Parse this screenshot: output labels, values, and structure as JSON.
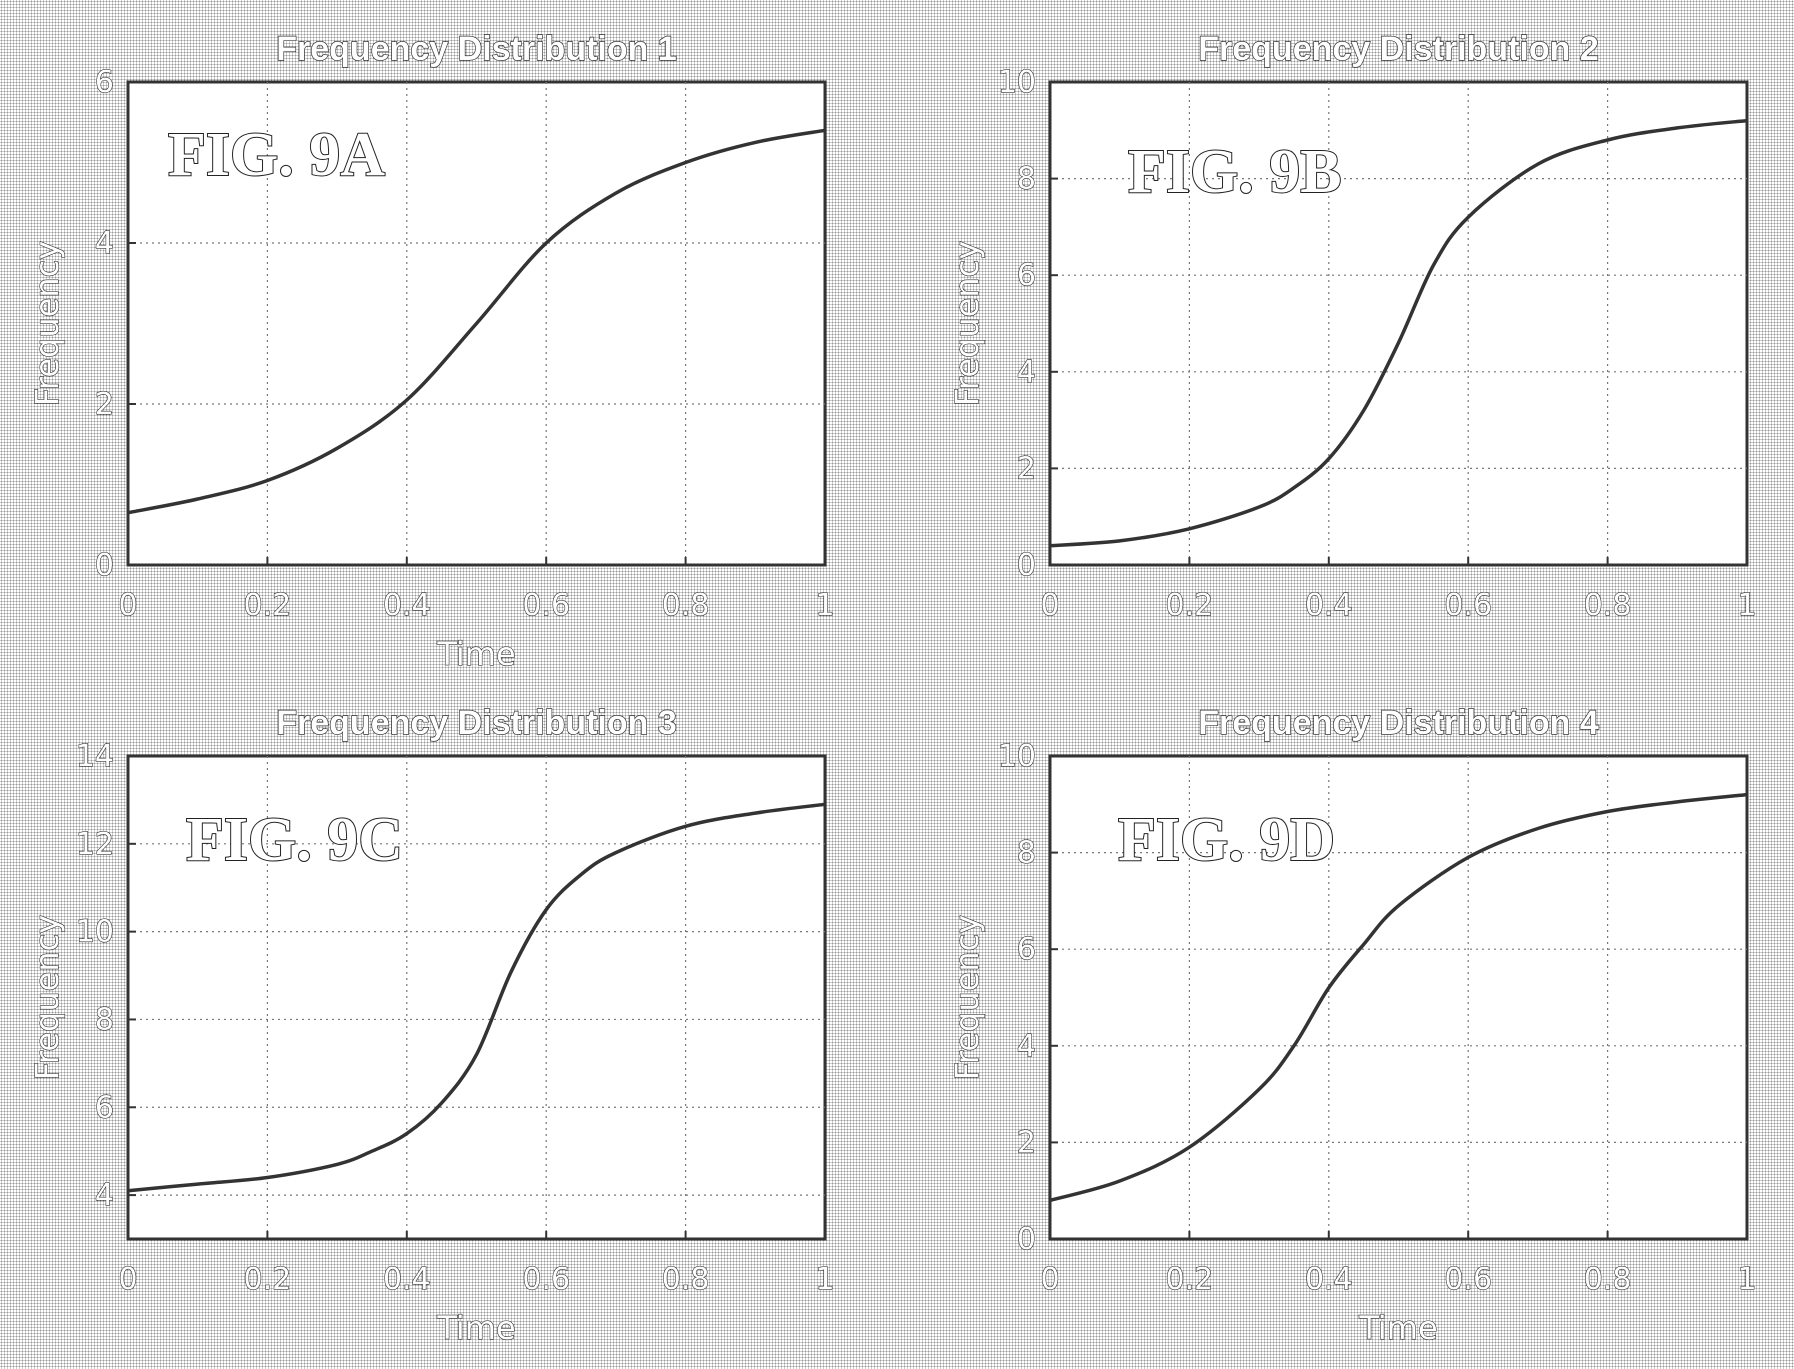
{
  "chart_data": [
    {
      "type": "line",
      "title": "Frequency Distribution 1",
      "annotation": "FIG. 9A",
      "xlabel": "Time",
      "ylabel": "Frequency",
      "xlim": [
        0,
        1
      ],
      "ylim": [
        0,
        6
      ],
      "xticks": [
        "0",
        "0.2",
        "0.4",
        "0.6",
        "0.8",
        "1"
      ],
      "yticks": [
        "0",
        "2",
        "4",
        "6"
      ],
      "grid": true,
      "series": [
        {
          "x": [
            0,
            0.1,
            0.2,
            0.3,
            0.4,
            0.5,
            0.6,
            0.7,
            0.8,
            0.9,
            1.0
          ],
          "y": [
            0.65,
            0.82,
            1.05,
            1.45,
            2.05,
            3.0,
            4.0,
            4.62,
            5.0,
            5.25,
            5.4
          ]
        }
      ]
    },
    {
      "type": "line",
      "title": "Frequency Distribution 2",
      "annotation": "FIG. 9B",
      "xlabel": "Time",
      "ylabel": "Frequency",
      "xlim": [
        0,
        1
      ],
      "ylim": [
        0,
        10
      ],
      "xticks": [
        "0",
        "0.2",
        "0.4",
        "0.6",
        "0.8",
        "1"
      ],
      "yticks": [
        "0",
        "2",
        "4",
        "6",
        "8",
        "10"
      ],
      "grid": true,
      "series": [
        {
          "x": [
            0,
            0.1,
            0.2,
            0.3,
            0.35,
            0.4,
            0.45,
            0.5,
            0.55,
            0.6,
            0.7,
            0.8,
            0.9,
            1.0
          ],
          "y": [
            0.4,
            0.5,
            0.75,
            1.2,
            1.6,
            2.2,
            3.2,
            4.6,
            6.2,
            7.2,
            8.3,
            8.8,
            9.05,
            9.2
          ]
        }
      ]
    },
    {
      "type": "line",
      "title": "Frequency Distribution 3",
      "annotation": "FIG. 9C",
      "xlabel": "Time",
      "ylabel": "Frequency",
      "xlim": [
        0,
        1
      ],
      "ylim": [
        3,
        14
      ],
      "xticks": [
        "0",
        "0.2",
        "0.4",
        "0.6",
        "0.8",
        "1"
      ],
      "yticks": [
        "4",
        "6",
        "8",
        "10",
        "12",
        "14"
      ],
      "grid": true,
      "series": [
        {
          "x": [
            0,
            0.1,
            0.2,
            0.3,
            0.35,
            0.4,
            0.45,
            0.5,
            0.55,
            0.6,
            0.65,
            0.7,
            0.8,
            0.9,
            1.0
          ],
          "y": [
            4.1,
            4.25,
            4.4,
            4.7,
            5.0,
            5.4,
            6.1,
            7.2,
            9.1,
            10.5,
            11.3,
            11.8,
            12.4,
            12.7,
            12.9
          ]
        }
      ]
    },
    {
      "type": "line",
      "title": "Frequency Distribution 4",
      "annotation": "FIG. 9D",
      "xlabel": "Time",
      "ylabel": "Frequency",
      "xlim": [
        0,
        1
      ],
      "ylim": [
        0,
        10
      ],
      "xticks": [
        "0",
        "0.2",
        "0.4",
        "0.6",
        "0.8",
        "1"
      ],
      "yticks": [
        "0",
        "2",
        "4",
        "6",
        "8",
        "10"
      ],
      "grid": true,
      "series": [
        {
          "x": [
            0,
            0.1,
            0.2,
            0.3,
            0.35,
            0.4,
            0.45,
            0.5,
            0.6,
            0.7,
            0.8,
            0.9,
            1.0
          ],
          "y": [
            0.8,
            1.2,
            1.9,
            3.1,
            4.0,
            5.2,
            6.1,
            6.9,
            7.9,
            8.5,
            8.85,
            9.05,
            9.2
          ]
        }
      ]
    }
  ]
}
